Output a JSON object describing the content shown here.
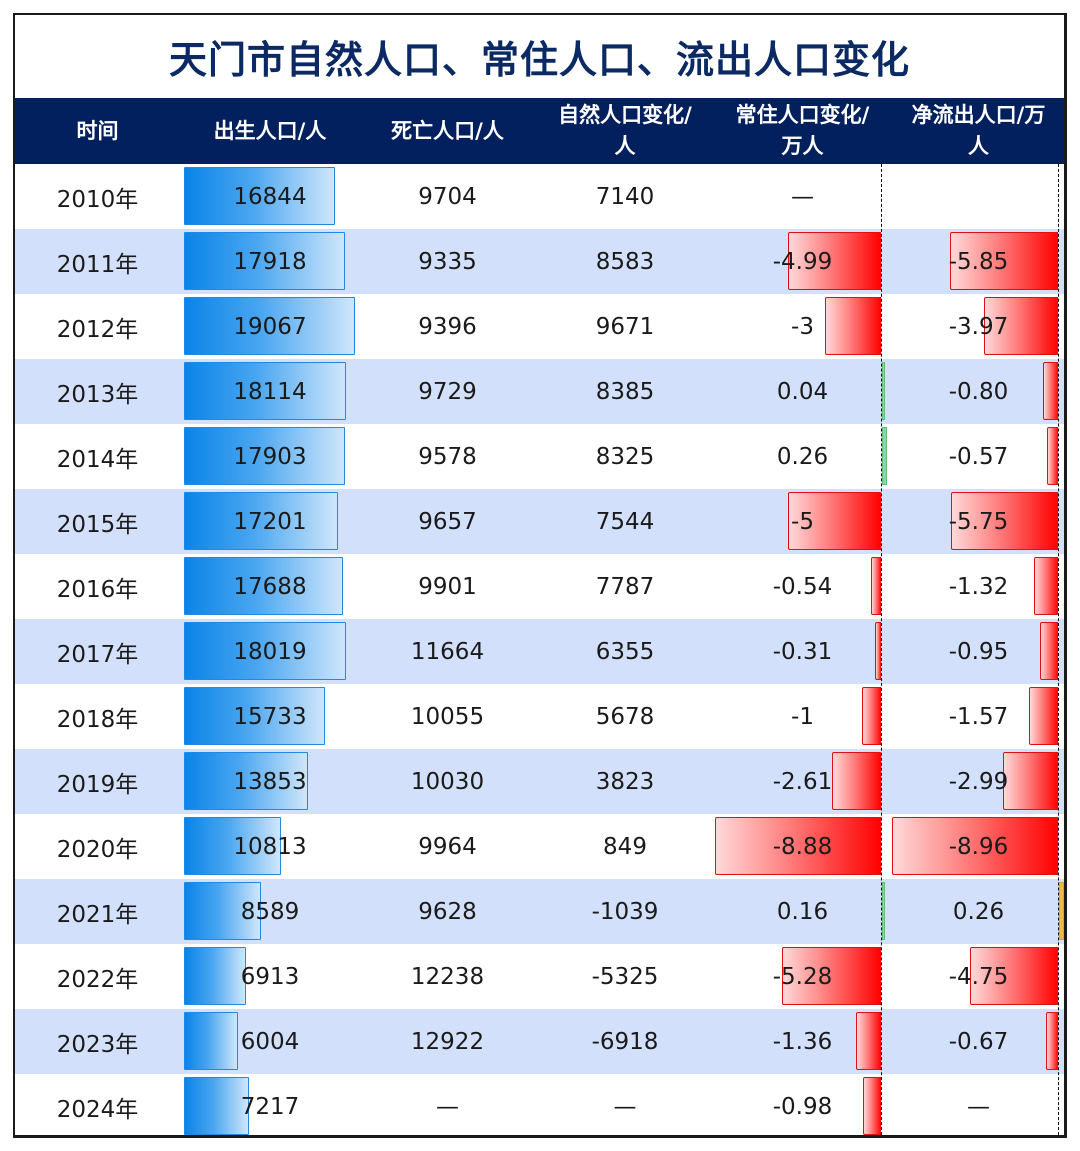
{
  "title": "天门市自然人口、常住人口、流出人口变化",
  "colors": {
    "title_text": "#0b2a63",
    "header_bg": "#03205e",
    "alt_row_bg": "#d3e0fb",
    "birth_bar": "#0a84e8",
    "negative_bar": "#ff0000",
    "positive_bar_resident": "#8fd4a0",
    "positive_bar_outflow": "#f3b84a"
  },
  "headers": {
    "time": "时间",
    "births": "出生人口/人",
    "deaths": "死亡人口/人",
    "natural_change_l1": "自然人口变化/",
    "natural_change_l2": "人",
    "resident_change_l1": "常住人口变化/",
    "resident_change_l2": "万人",
    "net_outflow_l1": "净流出人口/万",
    "net_outflow_l2": "人"
  },
  "rows": [
    {
      "year": "2010年",
      "births": "16844",
      "deaths": "9704",
      "natural": "7140",
      "resident": "—",
      "outflow": ""
    },
    {
      "year": "2011年",
      "births": "17918",
      "deaths": "9335",
      "natural": "8583",
      "resident": "-4.99",
      "outflow": "-5.85"
    },
    {
      "year": "2012年",
      "births": "19067",
      "deaths": "9396",
      "natural": "9671",
      "resident": "-3",
      "outflow": "-3.97"
    },
    {
      "year": "2013年",
      "births": "18114",
      "deaths": "9729",
      "natural": "8385",
      "resident": "0.04",
      "outflow": "-0.80"
    },
    {
      "year": "2014年",
      "births": "17903",
      "deaths": "9578",
      "natural": "8325",
      "resident": "0.26",
      "outflow": "-0.57"
    },
    {
      "year": "2015年",
      "births": "17201",
      "deaths": "9657",
      "natural": "7544",
      "resident": "-5",
      "outflow": "-5.75"
    },
    {
      "year": "2016年",
      "births": "17688",
      "deaths": "9901",
      "natural": "7787",
      "resident": "-0.54",
      "outflow": "-1.32"
    },
    {
      "year": "2017年",
      "births": "18019",
      "deaths": "11664",
      "natural": "6355",
      "resident": "-0.31",
      "outflow": "-0.95"
    },
    {
      "year": "2018年",
      "births": "15733",
      "deaths": "10055",
      "natural": "5678",
      "resident": "-1",
      "outflow": "-1.57"
    },
    {
      "year": "2019年",
      "births": "13853",
      "deaths": "10030",
      "natural": "3823",
      "resident": "-2.61",
      "outflow": "-2.99"
    },
    {
      "year": "2020年",
      "births": "10813",
      "deaths": "9964",
      "natural": "849",
      "resident": "-8.88",
      "outflow": "-8.96"
    },
    {
      "year": "2021年",
      "births": "8589",
      "deaths": "9628",
      "natural": "-1039",
      "resident": "0.16",
      "outflow": "0.26"
    },
    {
      "year": "2022年",
      "births": "6913",
      "deaths": "12238",
      "natural": "-5325",
      "resident": "-5.28",
      "outflow": "-4.75"
    },
    {
      "year": "2023年",
      "births": "6004",
      "deaths": "12922",
      "natural": "-6918",
      "resident": "-1.36",
      "outflow": "-0.67"
    },
    {
      "year": "2024年",
      "births": "7217",
      "deaths": "—",
      "natural": "—",
      "resident": "-0.98",
      "outflow": "—"
    }
  ],
  "chart_data": {
    "type": "table",
    "title": "天门市自然人口、常住人口、流出人口变化",
    "columns": [
      "时间",
      "出生人口/人",
      "死亡人口/人",
      "自然人口变化/人",
      "常住人口变化/万人",
      "净流出人口/万人"
    ],
    "categories": [
      "2010年",
      "2011年",
      "2012年",
      "2013年",
      "2014年",
      "2015年",
      "2016年",
      "2017年",
      "2018年",
      "2019年",
      "2020年",
      "2021年",
      "2022年",
      "2023年",
      "2024年"
    ],
    "series": [
      {
        "name": "出生人口/人",
        "values": [
          16844,
          17918,
          19067,
          18114,
          17903,
          17201,
          17688,
          18019,
          15733,
          13853,
          10813,
          8589,
          6913,
          6004,
          7217
        ],
        "render": "data-bar"
      },
      {
        "name": "死亡人口/人",
        "values": [
          9704,
          9335,
          9396,
          9729,
          9578,
          9657,
          9901,
          11664,
          10055,
          10030,
          9964,
          9628,
          12238,
          12922,
          null
        ]
      },
      {
        "name": "自然人口变化/人",
        "values": [
          7140,
          8583,
          9671,
          8385,
          8325,
          7544,
          7787,
          6355,
          5678,
          3823,
          849,
          -1039,
          -5325,
          -6918,
          null
        ]
      },
      {
        "name": "常住人口变化/万人",
        "values": [
          null,
          -4.99,
          -3,
          0.04,
          0.26,
          -5,
          -0.54,
          -0.31,
          -1,
          -2.61,
          -8.88,
          0.16,
          -5.28,
          -1.36,
          -0.98
        ],
        "render": "data-bar-diverging"
      },
      {
        "name": "净流出人口/万人",
        "values": [
          null,
          -5.85,
          -3.97,
          -0.8,
          -0.57,
          -5.75,
          -1.32,
          -0.95,
          -1.57,
          -2.99,
          -8.96,
          0.26,
          -4.75,
          -0.67,
          null
        ],
        "render": "data-bar-diverging"
      }
    ]
  }
}
